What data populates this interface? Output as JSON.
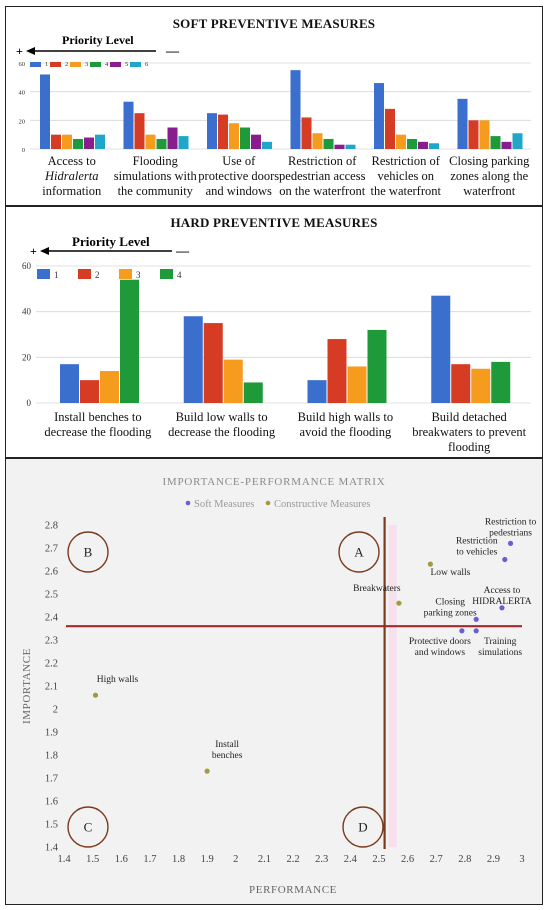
{
  "soft": {
    "title": "SOFT PREVENTIVE MEASURES",
    "priority_label": "Priority Level",
    "plus": "+",
    "minus": "—",
    "chart_data": {
      "type": "bar",
      "title": "SOFT PREVENTIVE MEASURES",
      "categories": [
        "Access to Hidralerta information",
        "Flooding simulations with the community",
        "Use of protective doors and windows",
        "Restriction of pedestrian access on the waterfront",
        "Restriction of vehicles on the waterfront",
        "Closing parking zones along the waterfront"
      ],
      "category_lines": [
        [
          "Access to",
          "Hidralerta",
          "information"
        ],
        [
          "Flooding",
          "simulations with",
          "the community"
        ],
        [
          "Use of",
          "protective doors",
          "and windows"
        ],
        [
          "Restriction of",
          "pedestrian access",
          "on the waterfront"
        ],
        [
          "Restriction of",
          "vehicles on",
          "the waterfront"
        ],
        [
          "Closing parking",
          "zones along the",
          "waterfront"
        ]
      ],
      "series": [
        {
          "name": "1",
          "color": "#3a6fce",
          "values": [
            52,
            33,
            25,
            55,
            46,
            35
          ]
        },
        {
          "name": "2",
          "color": "#d63c24",
          "values": [
            10,
            25,
            24,
            22,
            28,
            20
          ]
        },
        {
          "name": "3",
          "color": "#f59c1e",
          "values": [
            10,
            10,
            18,
            11,
            10,
            20
          ]
        },
        {
          "name": "4",
          "color": "#1f9a3a",
          "values": [
            7,
            7,
            15,
            7,
            7,
            9
          ]
        },
        {
          "name": "5",
          "color": "#8a1d8e",
          "values": [
            8,
            15,
            10,
            3,
            5,
            5
          ]
        },
        {
          "name": "6",
          "color": "#21a6c9",
          "values": [
            10,
            9,
            5,
            3,
            4,
            11
          ]
        }
      ],
      "ylim": [
        0,
        60
      ],
      "yticks": [
        "0",
        "20",
        "40",
        "60"
      ]
    }
  },
  "hard": {
    "title": "HARD PREVENTIVE MEASURES",
    "priority_label": "Priority Level",
    "plus": "+",
    "minus": "—",
    "chart_data": {
      "type": "bar",
      "title": "HARD PREVENTIVE MEASURES",
      "categories": [
        "Install benches to decrease the flooding",
        "Build low walls to decrease the flooding",
        "Build high walls to avoid the flooding",
        "Build detached breakwaters to prevent flooding"
      ],
      "category_lines": [
        [
          "Install benches to",
          "decrease the flooding"
        ],
        [
          "Build low walls to",
          "decrease the flooding"
        ],
        [
          "Build high walls to",
          "avoid the flooding"
        ],
        [
          "Build detached",
          "breakwaters to prevent",
          "flooding"
        ]
      ],
      "series": [
        {
          "name": "1",
          "color": "#3a6fce",
          "values": [
            17,
            38,
            10,
            47
          ]
        },
        {
          "name": "2",
          "color": "#d63c24",
          "values": [
            10,
            35,
            28,
            17
          ]
        },
        {
          "name": "3",
          "color": "#f59c1e",
          "values": [
            14,
            19,
            16,
            15
          ]
        },
        {
          "name": "4",
          "color": "#1f9a3a",
          "values": [
            54,
            9,
            32,
            18
          ]
        }
      ],
      "ylim": [
        0,
        60
      ],
      "yticks": [
        "0",
        "20",
        "40",
        "60"
      ]
    }
  },
  "ipm": {
    "chart_data": {
      "type": "scatter",
      "title": "IMPORTANCE-PERFORMANCE MATRIX",
      "xlabel": "PERFORMANCE",
      "ylabel": "IMPORTANCE",
      "xlim": [
        1.4,
        3.0
      ],
      "ylim": [
        1.4,
        2.8
      ],
      "xticks": [
        "1.4",
        "1.5",
        "1.6",
        "1.7",
        "1.8",
        "1.9",
        "2",
        "2.1",
        "2.2",
        "2.3",
        "2.4",
        "2.5",
        "2.6",
        "2.7",
        "2.8",
        "2.9",
        "3"
      ],
      "yticks": [
        "1.4",
        "1.5",
        "1.6",
        "1.7",
        "1.8",
        "1.9",
        "2",
        "2.1",
        "2.2",
        "2.3",
        "2.4",
        "2.5",
        "2.6",
        "2.7",
        "2.8"
      ],
      "legend": [
        "Soft Measures",
        "Constructive Measures"
      ],
      "series": [
        {
          "name": "Soft Measures",
          "color": "#6a5fd0",
          "points": [
            {
              "x": 2.96,
              "y": 2.72,
              "label": [
                "Restriction to",
                "pedestrians"
              ]
            },
            {
              "x": 2.94,
              "y": 2.65,
              "label": [
                "Restriction",
                "to vehicles"
              ]
            },
            {
              "x": 2.93,
              "y": 2.44,
              "label": [
                "Access to",
                "HIDRALERTA"
              ]
            },
            {
              "x": 2.84,
              "y": 2.39,
              "label": [
                "Closing",
                "parking zones"
              ]
            },
            {
              "x": 2.79,
              "y": 2.34,
              "label": [
                "Protective doors",
                "and windows"
              ]
            },
            {
              "x": 2.84,
              "y": 2.34,
              "label": [
                "Training",
                "simulations"
              ]
            }
          ]
        },
        {
          "name": "Constructive Measures",
          "color": "#a39a3c",
          "points": [
            {
              "x": 2.68,
              "y": 2.63,
              "label": [
                "Low walls"
              ]
            },
            {
              "x": 2.57,
              "y": 2.46,
              "label": [
                "Breakwaters"
              ]
            },
            {
              "x": 1.51,
              "y": 2.06,
              "label": [
                "High walls"
              ]
            },
            {
              "x": 1.9,
              "y": 1.73,
              "label": [
                "Install",
                "benches"
              ]
            }
          ]
        }
      ],
      "thresholds": {
        "x": 2.52,
        "y": 2.36
      },
      "quadrants": [
        "A",
        "B",
        "C",
        "D"
      ]
    }
  }
}
